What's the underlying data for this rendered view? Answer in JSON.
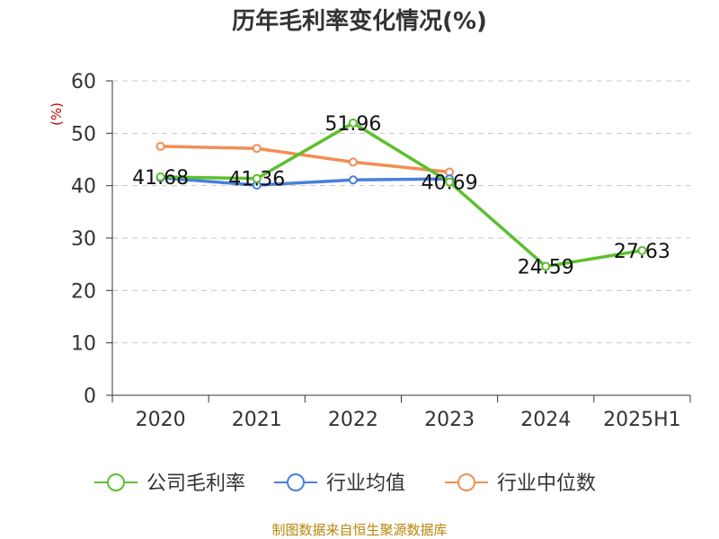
{
  "chart_data": {
    "type": "line",
    "title": "历年毛利率变化情况(%)",
    "ylabel": "(%)",
    "categories": [
      "2020",
      "2021",
      "2022",
      "2023",
      "2024",
      "2025H1"
    ],
    "ylim": [
      0,
      60
    ],
    "yticks": [
      0,
      10,
      20,
      30,
      40,
      50,
      60
    ],
    "grid": "horizontal-dashed",
    "legend_position": "bottom",
    "series": [
      {
        "name": "公司毛利率",
        "color": "#5cc02e",
        "values": [
          41.68,
          41.36,
          51.96,
          40.69,
          24.59,
          27.63
        ],
        "labels": [
          "41.68",
          "41.36",
          "51.96",
          "40.69",
          "24.59",
          "27.63"
        ]
      },
      {
        "name": "行业均值",
        "color": "#4a7fdb",
        "values": [
          41.5,
          40.1,
          41.1,
          41.3,
          null,
          null
        ]
      },
      {
        "name": "行业中位数",
        "color": "#f28e54",
        "values": [
          47.5,
          47.1,
          44.5,
          42.6,
          null,
          null
        ]
      }
    ]
  },
  "footer": {
    "source": "制图数据来自恒生聚源数据库"
  }
}
